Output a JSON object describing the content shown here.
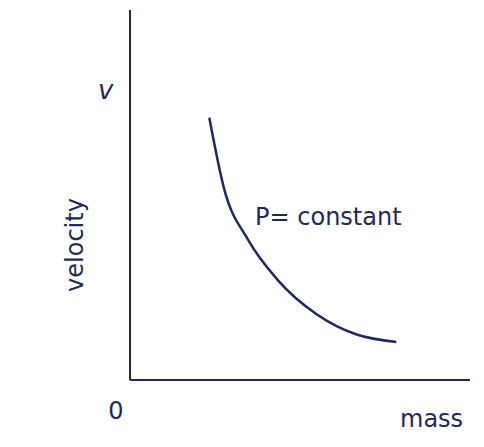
{
  "chart_data": {
    "type": "line",
    "x_label": "mass",
    "y_label": "v",
    "y_label_note": "velocity",
    "annotation": {
      "text": "P= constant",
      "x": 1.75,
      "y": 1.55
    },
    "x": [
      0.7,
      0.83,
      1.04,
      1.3,
      1.65,
      2.0,
      2.35
    ],
    "values": [
      2.48,
      1.81,
      1.33,
      0.95,
      0.62,
      0.43,
      0.36
    ],
    "color": "#1f2a5a",
    "xlim": [
      0,
      3
    ],
    "ylim": [
      0,
      3.5
    ],
    "xticks": [
      0
    ],
    "tick_labels": "x",
    "grid": false
  }
}
